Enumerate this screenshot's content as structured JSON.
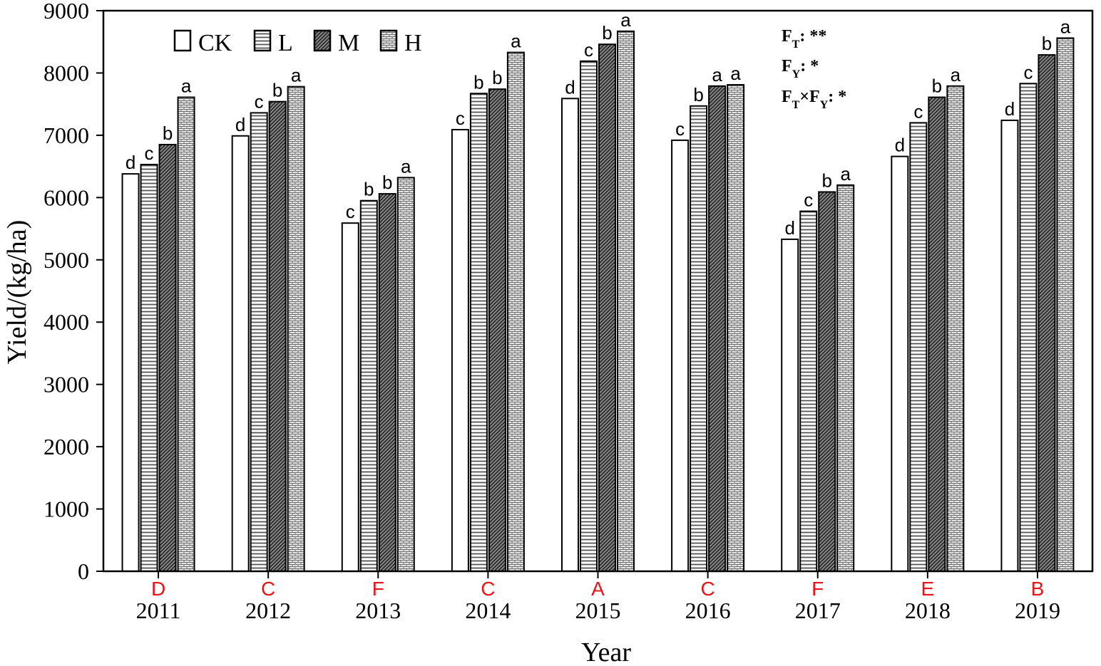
{
  "chart_data": {
    "type": "bar",
    "title": "",
    "xlabel": "Year",
    "ylabel": "Yield/(kg/ha)",
    "ylim": [
      0,
      9000
    ],
    "yticks": [
      "0",
      "1000",
      "2000",
      "3000",
      "4000",
      "5000",
      "6000",
      "7000",
      "8000",
      "9000"
    ],
    "categories": [
      "2011",
      "2012",
      "2013",
      "2014",
      "2015",
      "2016",
      "2017",
      "2018",
      "2019"
    ],
    "series": [
      {
        "name": "CK",
        "pattern": "white",
        "values": [
          6380,
          6990,
          5590,
          7090,
          7590,
          6920,
          5330,
          6660,
          7240
        ],
        "letters": [
          "d",
          "d",
          "c",
          "c",
          "d",
          "c",
          "d",
          "d",
          "d"
        ]
      },
      {
        "name": "L",
        "pattern": "horizontal-lines",
        "values": [
          6530,
          7360,
          5950,
          7670,
          8190,
          7470,
          5780,
          7200,
          7830
        ],
        "letters": [
          "c",
          "c",
          "b",
          "b",
          "c",
          "b",
          "c",
          "c",
          "c"
        ]
      },
      {
        "name": "M",
        "pattern": "diagonal-lines",
        "values": [
          6850,
          7540,
          6060,
          7740,
          8460,
          7790,
          6090,
          7610,
          8290
        ],
        "letters": [
          "b",
          "b",
          "b",
          "b",
          "b",
          "a",
          "b",
          "b",
          "b"
        ]
      },
      {
        "name": "H",
        "pattern": "brick",
        "values": [
          7610,
          7780,
          6320,
          8330,
          8670,
          7810,
          6200,
          7790,
          8560
        ],
        "letters": [
          "a",
          "a",
          "a",
          "a",
          "a",
          "a",
          "a",
          "a",
          "a"
        ]
      }
    ],
    "year_letters": [
      "D",
      "C",
      "F",
      "C",
      "A",
      "C",
      "F",
      "E",
      "B"
    ],
    "year_letter_color": "#e8141c",
    "legend_position": "top-left",
    "grid": false
  },
  "annotations": {
    "ft_main": "F",
    "ft_sub": "T",
    "ft_rest": ": **",
    "fy_main": "F",
    "fy_sub": "Y",
    "fy_rest": ": *",
    "ftfy_main1": "F",
    "ftfy_sub1": "T",
    "ftfy_times": "×",
    "ftfy_main2": "F",
    "ftfy_sub2": "Y",
    "ftfy_rest": ": *"
  }
}
